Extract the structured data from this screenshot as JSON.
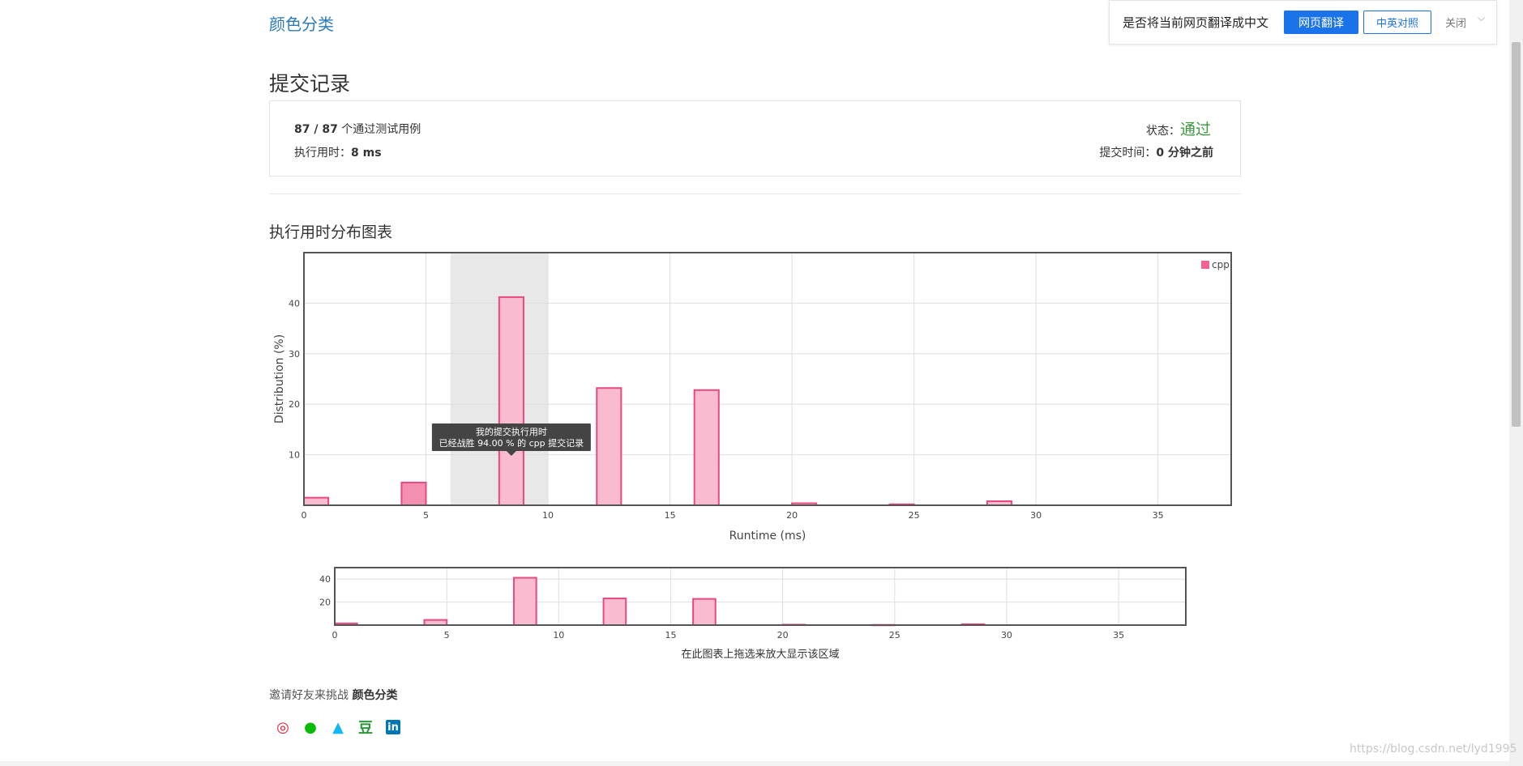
{
  "header": {
    "problem_title": "颜色分类"
  },
  "translate_bar": {
    "question": "是否将当前网页翻译成中文",
    "translate_button": "网页翻译",
    "bilingual_button": "中英对照",
    "close_label": "关闭",
    "accent": "#1a73e8"
  },
  "submission": {
    "title": "提交记录",
    "passed_cases": "87 / 87",
    "passed_cases_suffix": " 个通过测试用例",
    "runtime_label": "执行用时：",
    "runtime_value": "8 ms",
    "status_label": "状态：",
    "status_value": "通过",
    "submit_time_label": "提交时间：",
    "submit_time_value": "0 分钟之前",
    "status_color": "#3c9a3c"
  },
  "chart_section_title": "执行用时分布图表",
  "chart_data": [
    {
      "type": "bar",
      "x": [
        0.5,
        4.5,
        8.5,
        12.5,
        16.5,
        20.5,
        24.5,
        28.5
      ],
      "series": [
        {
          "name": "cpp",
          "values": [
            1.5,
            4.5,
            41.2,
            23.2,
            22.8,
            0.4,
            0.2,
            0.8
          ],
          "color": "#f06292"
        }
      ],
      "xlabel": "Runtime (ms)",
      "ylabel": "Distribution (%)",
      "xlim": [
        0,
        38
      ],
      "ylim": [
        0,
        50
      ],
      "xticks": [
        0,
        5,
        10,
        15,
        20,
        25,
        30,
        35
      ],
      "yticks": [
        10,
        20,
        30,
        40
      ],
      "highlight_range": [
        6,
        10
      ],
      "highlight_bar_index": 2,
      "legend": "top-right",
      "grid": true,
      "tooltip": {
        "line1": "我的提交执行用时",
        "line2": "已经战胜 94.00 % 的 cpp 提交记录"
      }
    },
    {
      "type": "bar",
      "x": [
        0.5,
        4.5,
        8.5,
        12.5,
        16.5,
        20.5,
        24.5,
        28.5
      ],
      "series": [
        {
          "name": "cpp",
          "values": [
            1.5,
            4.5,
            41.2,
            23.2,
            22.8,
            0.4,
            0.2,
            0.8
          ],
          "color": "#f06292"
        }
      ],
      "xlim": [
        0,
        38
      ],
      "ylim": [
        0,
        50
      ],
      "xticks": [
        0,
        5,
        10,
        15,
        20,
        25,
        30,
        35
      ],
      "yticks": [
        20,
        40
      ],
      "grid": true,
      "caption": "在此图表上拖选来放大显示该区域"
    }
  ],
  "invite": {
    "text": "邀请好友来挑战 ",
    "problem": "颜色分类"
  },
  "share_icons": [
    {
      "name": "weibo-icon",
      "glyph": "◎",
      "color": "#e6162d"
    },
    {
      "name": "wechat-icon",
      "glyph": "●",
      "color": "#09bb07"
    },
    {
      "name": "qq-icon",
      "glyph": "▲",
      "color": "#12b7f5"
    },
    {
      "name": "douban-icon",
      "glyph": "豆",
      "color": "#2e963d"
    },
    {
      "name": "linkedin-icon",
      "glyph": "in",
      "color": "#0077b5"
    }
  ],
  "watermark": "https://blog.csdn.net/lyd1995"
}
